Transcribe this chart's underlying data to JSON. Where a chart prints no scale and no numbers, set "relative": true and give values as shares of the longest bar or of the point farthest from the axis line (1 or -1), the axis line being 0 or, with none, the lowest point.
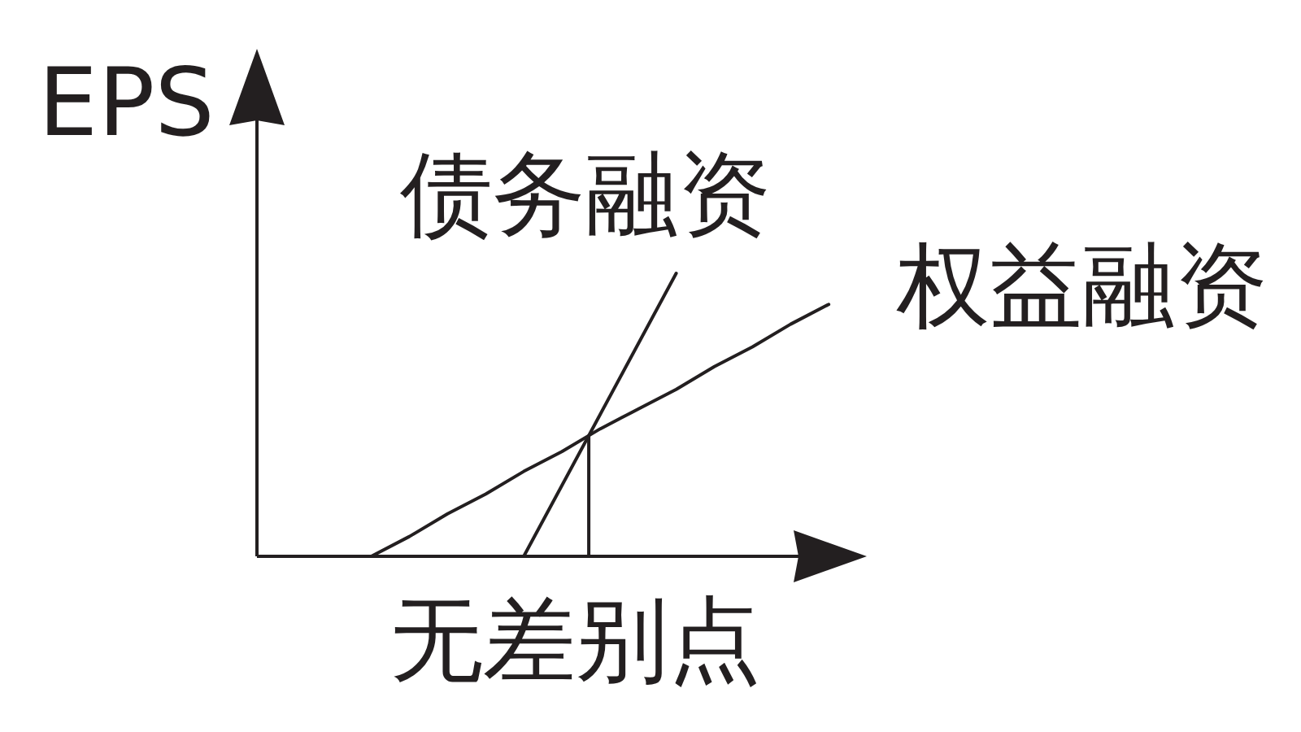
{
  "chart_data": {
    "type": "line",
    "relative": true,
    "ylabel": "EPS",
    "xlabel": "无差别点",
    "marker": "none",
    "categories": [
      null,
      null,
      null,
      null,
      null,
      null,
      null,
      null,
      null,
      null,
      null,
      null,
      null,
      null,
      null,
      null,
      null
    ],
    "series": [
      {
        "name": "债务融资",
        "color": "#231f20",
        "values": [
          null,
          null,
          null,
          null,
          null,
          null,
          null,
          0,
          0.25,
          0.5,
          0.75,
          1,
          null,
          null,
          null,
          null,
          null
        ]
      },
      {
        "name": "权益融资",
        "color": "#231f20",
        "values": [
          null,
          null,
          null,
          0,
          0.07,
          0.15,
          0.22,
          0.3,
          0.37,
          0.45,
          0.52,
          0.59,
          0.67,
          0.74,
          0.82,
          0.89,
          null
        ]
      }
    ]
  }
}
